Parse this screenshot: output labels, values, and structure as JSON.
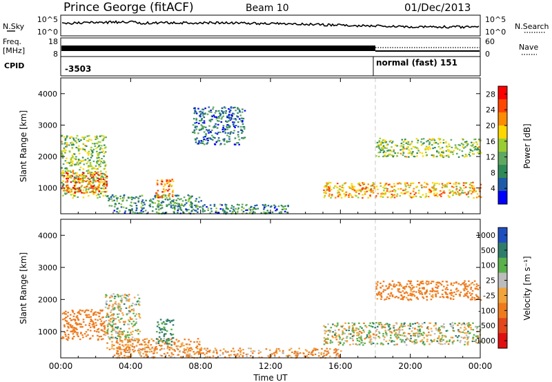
{
  "header": {
    "station": "Prince George (fitACF)",
    "beam": "Beam 10",
    "date": "01/Dec/2013"
  },
  "top_panel": {
    "left_labels": {
      "nsky": "N.Sky",
      "freq_a": "Freq.",
      "freq_b": "[MHz]",
      "cpid": "CPID"
    },
    "right_labels": {
      "nsearch": "N.Search",
      "nave": "Nave"
    },
    "nsky_ticks": [
      "10^5",
      "10^0"
    ],
    "nsearch_ticks": [
      "10^5",
      "10^0"
    ],
    "freq_ticks": [
      "18",
      "8"
    ],
    "nave_ticks": [
      "60",
      "0"
    ],
    "cpid_left": "-3503",
    "cpid_right": "normal (fast) 151",
    "cpid_change_hour": 18.0
  },
  "colors": {
    "power_scale": [
      "#0000ff",
      "#1e5aa8",
      "#2e8b57",
      "#5fa85f",
      "#9acd32",
      "#ffd700",
      "#ff8c00",
      "#ff4500",
      "#ff0000"
    ],
    "velocity_scale": [
      "#1f4fbf",
      "#2e7d6b",
      "#5ab04a",
      "#bcbcbc",
      "#f2a33a",
      "#ee7a1d",
      "#e3461a",
      "#e01010"
    ]
  },
  "chart_data": [
    {
      "type": "heatmap",
      "title": "",
      "xlabel": "",
      "ylabel": "Slant Range [km]",
      "xlim": [
        0,
        24
      ],
      "ylim": [
        180,
        4500
      ],
      "y_ticks": [
        "1000",
        "2000",
        "3000",
        "4000"
      ],
      "x_ticks": [
        "00:00",
        "04:00",
        "08:00",
        "12:00",
        "16:00",
        "20:00",
        "00:00"
      ],
      "colorbar": {
        "label": "Power [dB]",
        "range": [
          0,
          30
        ],
        "ticks": [
          "4",
          "8",
          "12",
          "16",
          "20",
          "24",
          "28"
        ]
      },
      "echo_regions": [
        {
          "hours": [
            0.0,
            2.6
          ],
          "range_km": [
            700,
            2700
          ],
          "power_db": 14
        },
        {
          "hours": [
            0.0,
            2.6
          ],
          "range_km": [
            850,
            1500
          ],
          "power_db": 25
        },
        {
          "hours": [
            2.6,
            8.0
          ],
          "range_km": [
            450,
            800
          ],
          "power_db": 9
        },
        {
          "hours": [
            5.4,
            6.4
          ],
          "range_km": [
            700,
            1300
          ],
          "power_db": 22
        },
        {
          "hours": [
            3.0,
            13.0
          ],
          "range_km": [
            200,
            500
          ],
          "power_db": 8
        },
        {
          "hours": [
            7.5,
            10.5
          ],
          "range_km": [
            2400,
            3600
          ],
          "power_db": 6
        },
        {
          "hours": [
            15.0,
            24.0
          ],
          "range_km": [
            700,
            1200
          ],
          "power_db": 20
        },
        {
          "hours": [
            18.0,
            24.0
          ],
          "range_km": [
            2000,
            2600
          ],
          "power_db": 14
        }
      ]
    },
    {
      "type": "heatmap",
      "title": "",
      "xlabel": "Time UT",
      "ylabel": "Slant Range [km]",
      "xlim": [
        0,
        24
      ],
      "ylim": [
        180,
        4500
      ],
      "y_ticks": [
        "1000",
        "2000",
        "3000",
        "4000"
      ],
      "x_ticks": [
        "00:00",
        "04:00",
        "08:00",
        "12:00",
        "16:00",
        "20:00",
        "00:00"
      ],
      "colorbar": {
        "label": "Velocity [m s⁻¹]",
        "ticks": [
          "1000",
          "500",
          "100",
          "25",
          "-25",
          "-100",
          "-500",
          "-1000"
        ]
      },
      "echo_regions": [
        {
          "hours": [
            0.0,
            2.5
          ],
          "range_km": [
            750,
            1700
          ],
          "velocity_ms": -300
        },
        {
          "hours": [
            2.5,
            4.5
          ],
          "range_km": [
            700,
            2200
          ],
          "velocity_ms": 0
        },
        {
          "hours": [
            2.6,
            8.0
          ],
          "range_km": [
            450,
            800
          ],
          "velocity_ms": -150
        },
        {
          "hours": [
            5.4,
            6.4
          ],
          "range_km": [
            600,
            1400
          ],
          "velocity_ms": 150
        },
        {
          "hours": [
            3.0,
            16.0
          ],
          "range_km": [
            200,
            500
          ],
          "velocity_ms": -120
        },
        {
          "hours": [
            15.0,
            24.0
          ],
          "range_km": [
            600,
            1300
          ],
          "velocity_ms": 0
        },
        {
          "hours": [
            18.0,
            24.0
          ],
          "range_km": [
            2000,
            2600
          ],
          "velocity_ms": -200
        }
      ]
    }
  ]
}
